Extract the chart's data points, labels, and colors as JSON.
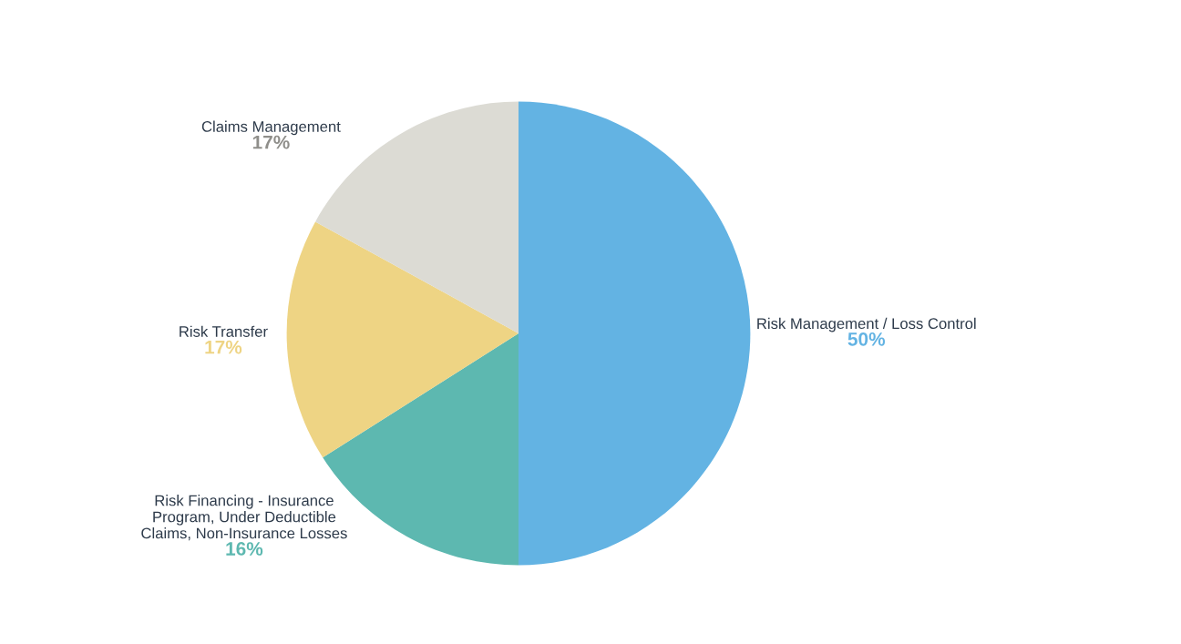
{
  "chart_data": {
    "type": "pie",
    "categories": [
      "Risk Management / Loss Control",
      "Risk Financing - Insurance\nProgram, Under Deductible\nClaims, Non-Insurance Losses",
      "Risk Transfer",
      "Claims Management"
    ],
    "values": [
      50,
      16,
      17,
      17
    ],
    "value_labels": [
      "50%",
      "16%",
      "17%",
      "17%"
    ],
    "colors": [
      "#63b3e3",
      "#5db8b0",
      "#eed484",
      "#dcdbd4"
    ],
    "legend": false
  }
}
